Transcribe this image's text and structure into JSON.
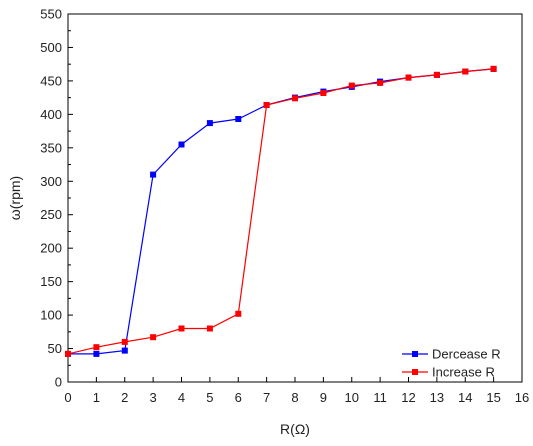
{
  "chart_data": {
    "type": "line",
    "xlabel": "R(Ω)",
    "ylabel": "ω(rpm)",
    "xlim": [
      0,
      16
    ],
    "ylim": [
      0,
      550
    ],
    "xticks": [
      0,
      1,
      2,
      3,
      4,
      5,
      6,
      7,
      8,
      9,
      10,
      11,
      12,
      13,
      14,
      15,
      16
    ],
    "yticks": [
      0,
      50,
      100,
      150,
      200,
      250,
      300,
      350,
      400,
      450,
      500,
      550
    ],
    "grid": false,
    "legend_position": "bottom-right",
    "series": [
      {
        "name": "Dercease R",
        "color": "#0000ff",
        "marker": "square",
        "x": [
          0,
          1,
          2,
          3,
          4,
          5,
          6,
          7,
          8,
          9,
          10,
          11,
          12,
          13,
          14,
          15
        ],
        "y": [
          42,
          42,
          47,
          310,
          355,
          387,
          393,
          414,
          425,
          434,
          441,
          449,
          455,
          459,
          464,
          468
        ]
      },
      {
        "name": "Increase R",
        "color": "#ff0000",
        "marker": "square",
        "x": [
          0,
          1,
          2,
          3,
          4,
          5,
          6,
          7,
          8,
          9,
          10,
          11,
          12,
          13,
          14,
          15
        ],
        "y": [
          42,
          52,
          60,
          67,
          80,
          80,
          102,
          414,
          424,
          432,
          443,
          447,
          455,
          459,
          464,
          468
        ]
      }
    ]
  }
}
